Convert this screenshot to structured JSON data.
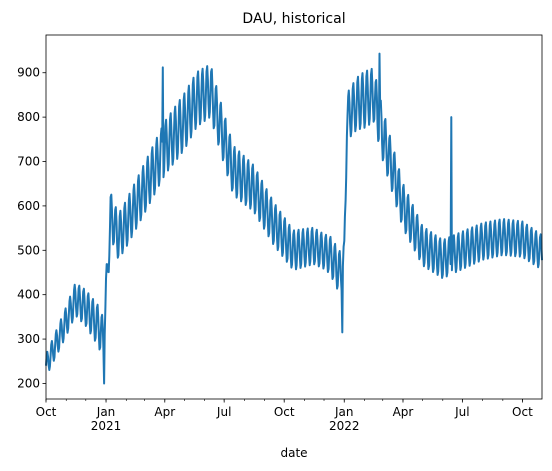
{
  "chart_data": {
    "type": "line",
    "title": "DAU, historical",
    "xlabel": "date",
    "ylabel": "",
    "x_range": [
      "2020-10-01",
      "2022-10-31"
    ],
    "ylim": [
      165,
      985
    ],
    "grid": false,
    "legend": "none",
    "line_color": "#1f77b4",
    "yticks": [
      200,
      300,
      400,
      500,
      600,
      700,
      800,
      900
    ],
    "xticks": [
      {
        "date": "2020-10-01",
        "label": "Oct",
        "sublabel": ""
      },
      {
        "date": "2021-01-01",
        "label": "Jan",
        "sublabel": "2021"
      },
      {
        "date": "2021-04-01",
        "label": "Apr",
        "sublabel": ""
      },
      {
        "date": "2021-07-01",
        "label": "Jul",
        "sublabel": ""
      },
      {
        "date": "2021-10-01",
        "label": "Oct",
        "sublabel": ""
      },
      {
        "date": "2022-01-01",
        "label": "Jan",
        "sublabel": "2022"
      },
      {
        "date": "2022-04-01",
        "label": "Apr",
        "sublabel": ""
      },
      {
        "date": "2022-07-01",
        "label": "Jul",
        "sublabel": ""
      },
      {
        "date": "2022-10-01",
        "label": "Oct",
        "sublabel": ""
      }
    ],
    "series": [
      {
        "frequency": "daily",
        "start": "2020-10-01",
        "trend": [
          [
            "2020-10-01",
            240
          ],
          [
            "2020-10-15",
            285
          ],
          [
            "2020-11-01",
            340
          ],
          [
            "2020-11-15",
            390
          ],
          [
            "2020-12-01",
            370
          ],
          [
            "2020-12-20",
            330
          ],
          [
            "2020-12-28",
            300
          ],
          [
            "2021-01-02",
            420
          ],
          [
            "2021-01-08",
            580
          ],
          [
            "2021-01-20",
            530
          ],
          [
            "2021-02-01",
            560
          ],
          [
            "2021-03-01",
            640
          ],
          [
            "2021-04-01",
            730
          ],
          [
            "2021-05-01",
            790
          ],
          [
            "2021-05-20",
            840
          ],
          [
            "2021-06-10",
            860
          ],
          [
            "2021-06-25",
            780
          ],
          [
            "2021-07-15",
            680
          ],
          [
            "2021-08-15",
            640
          ],
          [
            "2021-09-15",
            560
          ],
          [
            "2021-10-15",
            500
          ],
          [
            "2021-11-15",
            510
          ],
          [
            "2021-12-10",
            490
          ],
          [
            "2021-12-25",
            450
          ],
          [
            "2022-01-01",
            470
          ],
          [
            "2022-01-05",
            800
          ],
          [
            "2022-01-20",
            830
          ],
          [
            "2022-02-15",
            850
          ],
          [
            "2022-03-01",
            760
          ],
          [
            "2022-04-01",
            600
          ],
          [
            "2022-05-01",
            510
          ],
          [
            "2022-06-01",
            480
          ],
          [
            "2022-07-01",
            500
          ],
          [
            "2022-08-01",
            520
          ],
          [
            "2022-09-01",
            530
          ],
          [
            "2022-10-01",
            525
          ],
          [
            "2022-10-31",
            495
          ]
        ],
        "weekly_amplitude": [
          [
            "2020-10-01",
            25
          ],
          [
            "2021-01-01",
            50
          ],
          [
            "2021-05-01",
            65
          ],
          [
            "2021-08-01",
            55
          ],
          [
            "2021-12-01",
            40
          ],
          [
            "2022-02-01",
            65
          ],
          [
            "2022-05-01",
            45
          ],
          [
            "2022-10-31",
            40
          ]
        ],
        "spikes": [
          {
            "date": "2021-03-29",
            "value": 912
          },
          {
            "date": "2020-12-29",
            "value": 200
          },
          {
            "date": "2021-12-29",
            "value": 315
          },
          {
            "date": "2022-06-14",
            "value": 800
          },
          {
            "date": "2022-02-24",
            "value": 943
          }
        ]
      }
    ]
  }
}
